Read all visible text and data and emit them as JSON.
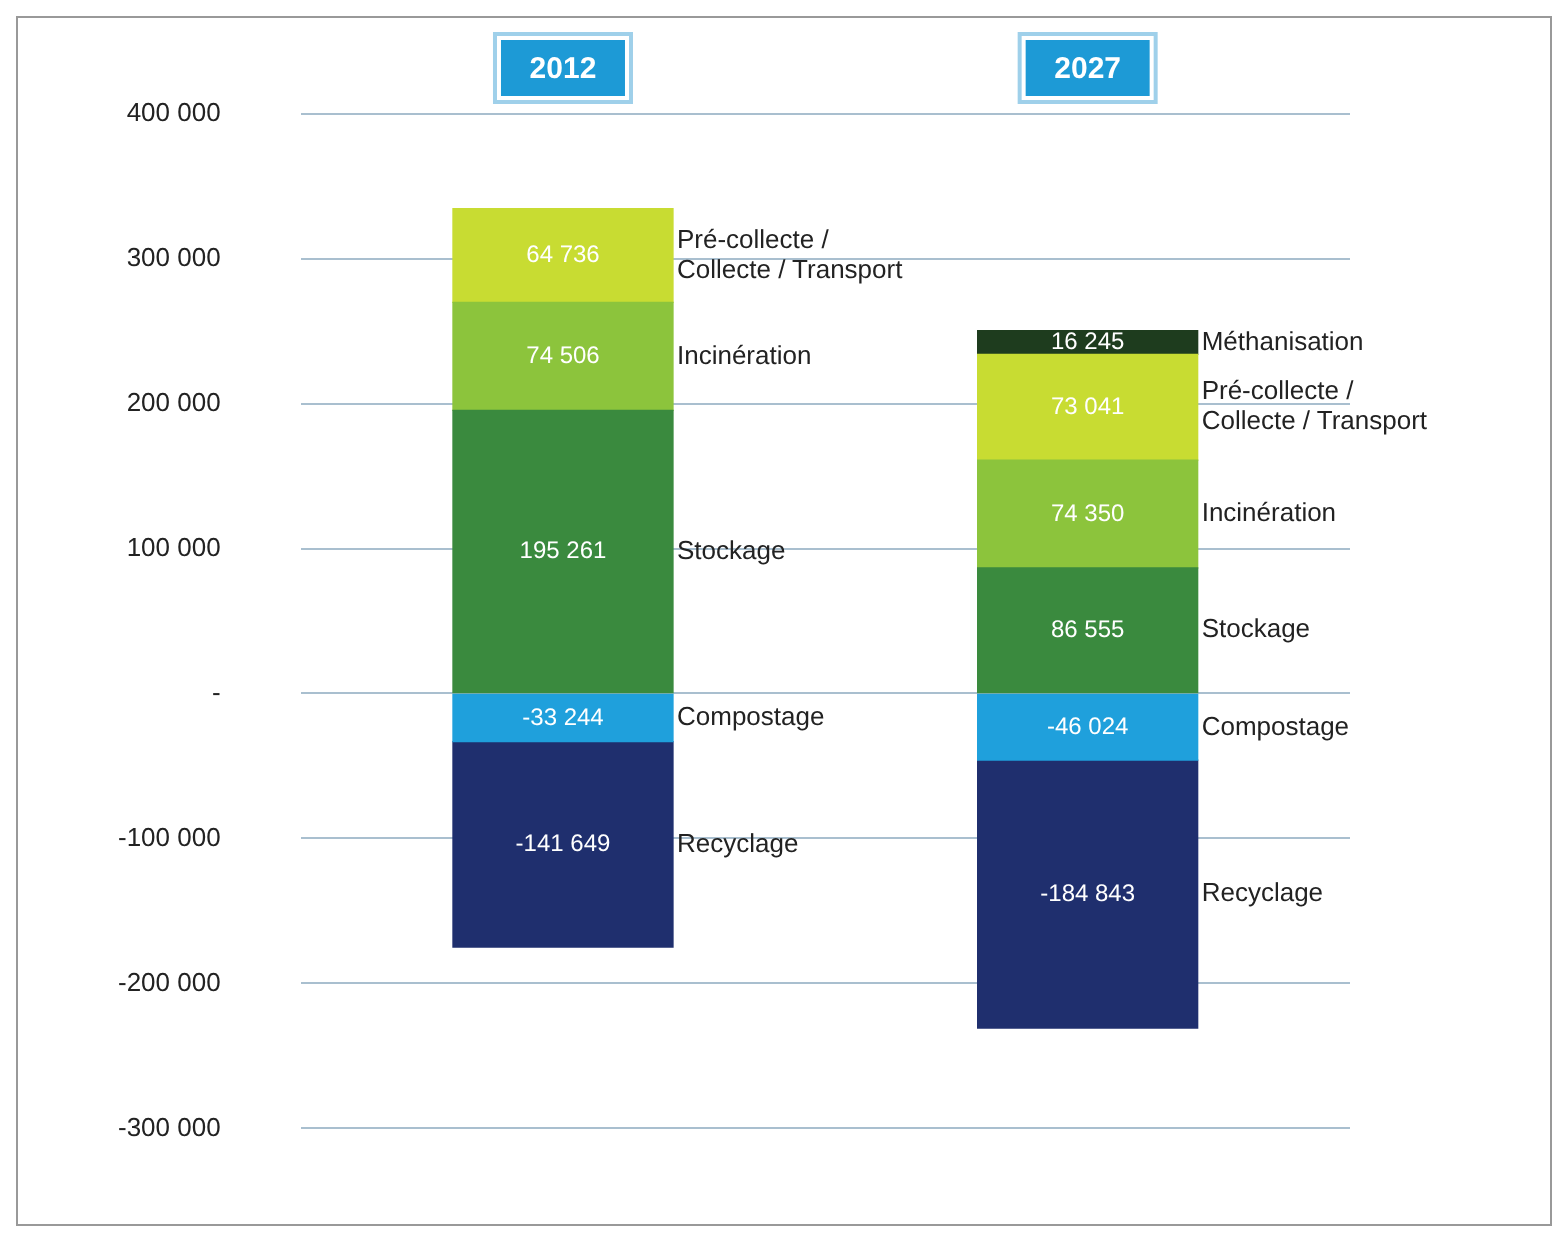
{
  "chart_data": {
    "type": "bar",
    "stacked": true,
    "categories": [
      "2012",
      "2027"
    ],
    "series": [
      {
        "name": "Stockage",
        "color": "#3a8a3e",
        "values": [
          195261,
          86555
        ],
        "value_labels": [
          "195 261",
          "86 555"
        ]
      },
      {
        "name": "Incinération",
        "color": "#8cc43c",
        "values": [
          74506,
          74350
        ],
        "value_labels": [
          "74 506",
          "74 350"
        ]
      },
      {
        "name": "Pré-collecte / Collecte / Transport",
        "color": "#c8dc32",
        "values": [
          64736,
          73041
        ],
        "value_labels": [
          "64 736",
          "73 041"
        ]
      },
      {
        "name": "Méthanisation",
        "color": "#1e3c1e",
        "values": [
          null,
          16245
        ],
        "value_labels": [
          null,
          "16 245"
        ]
      },
      {
        "name": "Compostage",
        "color": "#1fa0dc",
        "values": [
          -33244,
          -46024
        ],
        "value_labels": [
          "-33 244",
          "-46 024"
        ]
      },
      {
        "name": "Recyclage",
        "color": "#1f2f6e",
        "values": [
          -141649,
          -184843
        ],
        "value_labels": [
          "-141 649",
          "-184 843"
        ]
      }
    ],
    "ylim": [
      -300000,
      400000
    ],
    "yticks": [
      {
        "value": -300000,
        "label": "-300 000"
      },
      {
        "value": -200000,
        "label": "-200 000"
      },
      {
        "value": -100000,
        "label": "-100 000"
      },
      {
        "value": 0,
        "label": "-"
      },
      {
        "value": 100000,
        "label": "100 000"
      },
      {
        "value": 200000,
        "label": "200 000"
      },
      {
        "value": 300000,
        "label": "300 000"
      },
      {
        "value": 400000,
        "label": "400 000"
      }
    ],
    "grid": "y",
    "legend": false
  }
}
